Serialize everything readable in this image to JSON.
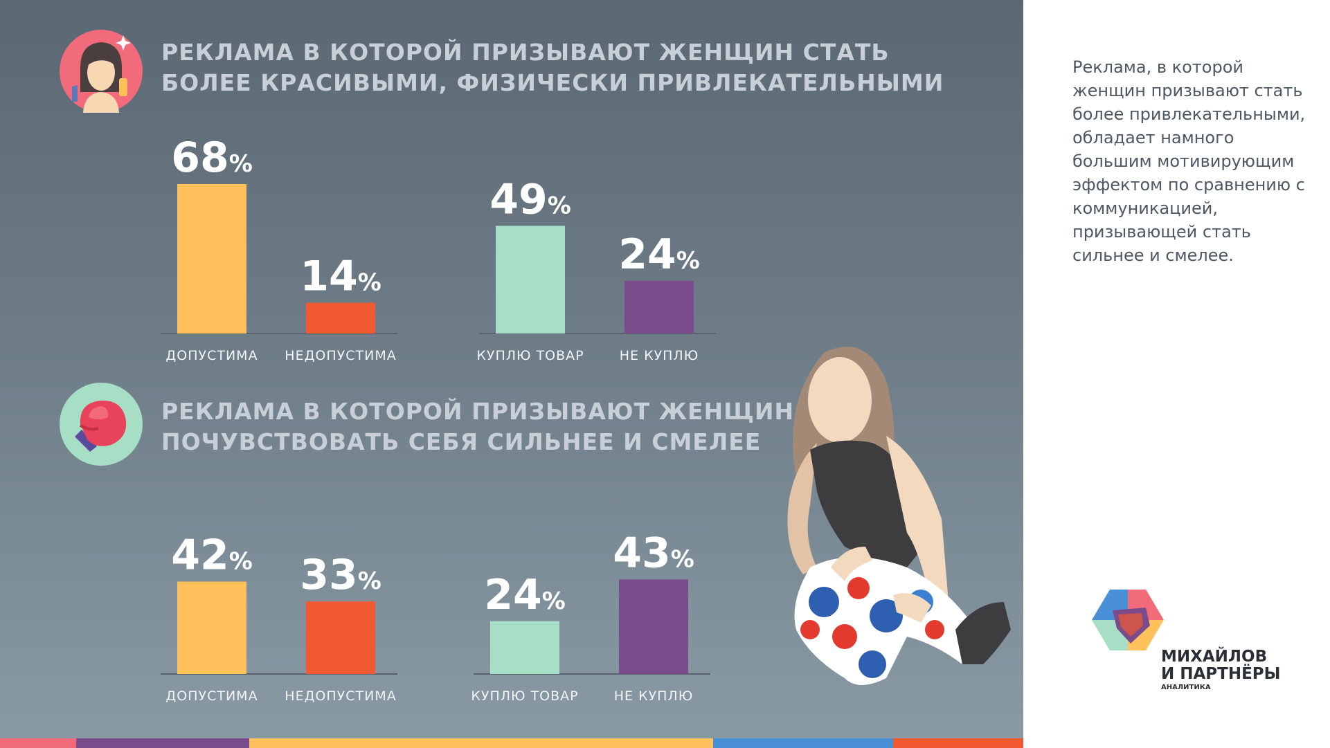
{
  "section1": {
    "title_line1": "РЕКЛАМА В КОТОРОЙ ПРИЗЫВАЮТ ЖЕНЩИН СТАТЬ",
    "title_line2": "БОЛЕЕ КРАСИВЫМИ, ФИЗИЧЕСКИ ПРИВЛЕКАТЕЛЬНЫМИ"
  },
  "section2": {
    "title_line1": "РЕКЛАМА В КОТОРОЙ ПРИЗЫВАЮТ ЖЕНЩИН",
    "title_line2": "ПОЧУВСТВОВАТЬ СЕБЯ СИЛЬНЕЕ И СМЕЛЕЕ"
  },
  "sidebar": {
    "text": "Реклама, в которой женщин призывают стать более привлекательными, обладает намного большим мотивирующим эффектом по сравнению с коммуникацией, призывающей стать сильнее и смелее."
  },
  "logo": {
    "line1": "МИХАЙЛОВ",
    "line2": "И ПАРТНЁРЫ",
    "line3": "АНАЛИТИКА"
  },
  "colors": {
    "yellow": "#fec15c",
    "red": "#f15a31",
    "mint": "#a6dfc6",
    "purple": "#7a4c8c",
    "label": "#f2f4f6"
  },
  "chart_data": [
    {
      "type": "bar",
      "categories": [
        "ДОПУСТИМА",
        "НЕДОПУСТИМА"
      ],
      "values": [
        68,
        14
      ],
      "unit": "%",
      "ylim": [
        0,
        68
      ]
    },
    {
      "type": "bar",
      "categories": [
        "КУПЛЮ ТОВАР",
        "НЕ КУПЛЮ"
      ],
      "values": [
        49,
        24
      ],
      "unit": "%",
      "ylim": [
        0,
        68
      ]
    },
    {
      "type": "bar",
      "categories": [
        "ДОПУСТИМА",
        "НЕДОПУСТИМА"
      ],
      "values": [
        42,
        33
      ],
      "unit": "%",
      "ylim": [
        0,
        68
      ]
    },
    {
      "type": "bar",
      "categories": [
        "КУПЛЮ ТОВАР",
        "НЕ КУПЛЮ"
      ],
      "values": [
        24,
        43
      ],
      "unit": "%",
      "ylim": [
        0,
        68
      ]
    }
  ]
}
